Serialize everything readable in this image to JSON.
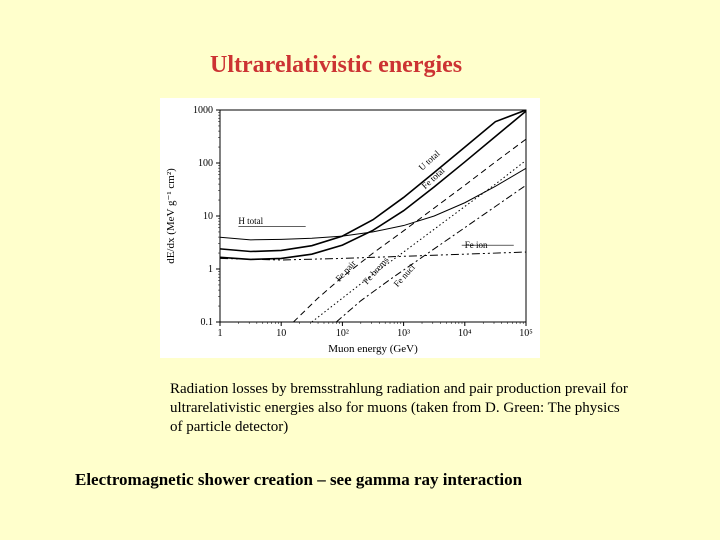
{
  "title": "Ultrarelativistic energies",
  "caption": "Radiation losses by bremsstrahlung radiation  and pair production prevail for ultrarelativistic energies also for muons (taken from D. Green: The physics of particle detector)",
  "footer": "Electromagnetic shower creation – see gamma ray interaction",
  "chart": {
    "type": "log-log-line",
    "background_color": "#ffffff",
    "page_background": "#ffffcc",
    "axis_color": "#000000",
    "xlabel": "Muon energy (GeV)",
    "ylabel": "dE/dx  (MeV g⁻¹ cm²)",
    "label_fontsize": 11,
    "tick_fontsize": 10,
    "xlim_exp": [
      0,
      5
    ],
    "ylim_exp": [
      -1,
      3
    ],
    "xticks": [
      "1",
      "10",
      "10²",
      "10³",
      "10⁴",
      "10⁵"
    ],
    "yticks": [
      "0.1",
      "1",
      "10",
      "100",
      "1000"
    ],
    "curve_labels": {
      "u_total": "U total",
      "fe_total": "Fe total",
      "h_total": "H total",
      "fe_ion": "Fe ion",
      "fe_pair": "Fe pair",
      "fe_brems": "Fe brems",
      "fe_nucl": "Fe nucl"
    },
    "series": [
      {
        "name": "u_total",
        "style": "solid",
        "width": 1.6,
        "color": "#000000",
        "points_log": [
          [
            0,
            0.38
          ],
          [
            0.5,
            0.33
          ],
          [
            1,
            0.35
          ],
          [
            1.5,
            0.44
          ],
          [
            2,
            0.62
          ],
          [
            2.5,
            0.93
          ],
          [
            3,
            1.35
          ],
          [
            3.5,
            1.82
          ],
          [
            4,
            2.3
          ],
          [
            4.5,
            2.78
          ],
          [
            5,
            3.0
          ]
        ]
      },
      {
        "name": "fe_total",
        "style": "solid",
        "width": 1.6,
        "color": "#000000",
        "points_log": [
          [
            0,
            0.22
          ],
          [
            0.5,
            0.18
          ],
          [
            1,
            0.2
          ],
          [
            1.5,
            0.28
          ],
          [
            2,
            0.45
          ],
          [
            2.5,
            0.73
          ],
          [
            3,
            1.1
          ],
          [
            3.5,
            1.55
          ],
          [
            4,
            2.02
          ],
          [
            4.5,
            2.5
          ],
          [
            5,
            2.98
          ]
        ]
      },
      {
        "name": "h_total",
        "style": "solid",
        "width": 1.0,
        "color": "#000000",
        "points_log": [
          [
            0,
            0.6
          ],
          [
            0.5,
            0.55
          ],
          [
            1,
            0.56
          ],
          [
            1.5,
            0.58
          ],
          [
            2,
            0.62
          ],
          [
            2.5,
            0.7
          ],
          [
            3,
            0.82
          ],
          [
            3.5,
            1.0
          ],
          [
            4,
            1.25
          ],
          [
            4.5,
            1.56
          ],
          [
            5,
            1.9
          ]
        ]
      },
      {
        "name": "fe_ion",
        "style": "dash-dot-dot",
        "width": 1.0,
        "color": "#000000",
        "points_log": [
          [
            0,
            0.2
          ],
          [
            1,
            0.17
          ],
          [
            2,
            0.2
          ],
          [
            3,
            0.24
          ],
          [
            4,
            0.28
          ],
          [
            5,
            0.32
          ]
        ]
      },
      {
        "name": "fe_pair",
        "style": "dashed",
        "width": 1.0,
        "color": "#000000",
        "points_log": [
          [
            1.2,
            -1.0
          ],
          [
            1.6,
            -0.55
          ],
          [
            2.0,
            -0.15
          ],
          [
            2.5,
            0.3
          ],
          [
            3.0,
            0.72
          ],
          [
            3.5,
            1.15
          ],
          [
            4.0,
            1.58
          ],
          [
            4.5,
            2.02
          ],
          [
            5.0,
            2.45
          ]
        ]
      },
      {
        "name": "fe_brems",
        "style": "dotted",
        "width": 1.0,
        "color": "#000000",
        "points_log": [
          [
            1.5,
            -1.0
          ],
          [
            2.0,
            -0.55
          ],
          [
            2.5,
            -0.1
          ],
          [
            3.0,
            0.32
          ],
          [
            3.5,
            0.75
          ],
          [
            4.0,
            1.18
          ],
          [
            4.5,
            1.6
          ],
          [
            5.0,
            2.05
          ]
        ]
      },
      {
        "name": "fe_nucl",
        "style": "dash-dot",
        "width": 1.0,
        "color": "#000000",
        "points_log": [
          [
            1.9,
            -1.0
          ],
          [
            2.3,
            -0.6
          ],
          [
            2.8,
            -0.18
          ],
          [
            3.3,
            0.22
          ],
          [
            3.8,
            0.62
          ],
          [
            4.3,
            1.02
          ],
          [
            4.8,
            1.42
          ],
          [
            5.0,
            1.58
          ]
        ]
      }
    ]
  }
}
